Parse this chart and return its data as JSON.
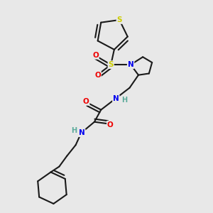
{
  "background_color": "#e8e8e8",
  "bond_color": "#1a1a1a",
  "atom_colors": {
    "S_thiophene": "#cccc00",
    "S_sulfonyl": "#cccc00",
    "N": "#0000ee",
    "O": "#ee0000",
    "H": "#5aaa9a",
    "C": "#1a1a1a"
  },
  "figsize": [
    3.0,
    3.0
  ],
  "dpi": 100
}
